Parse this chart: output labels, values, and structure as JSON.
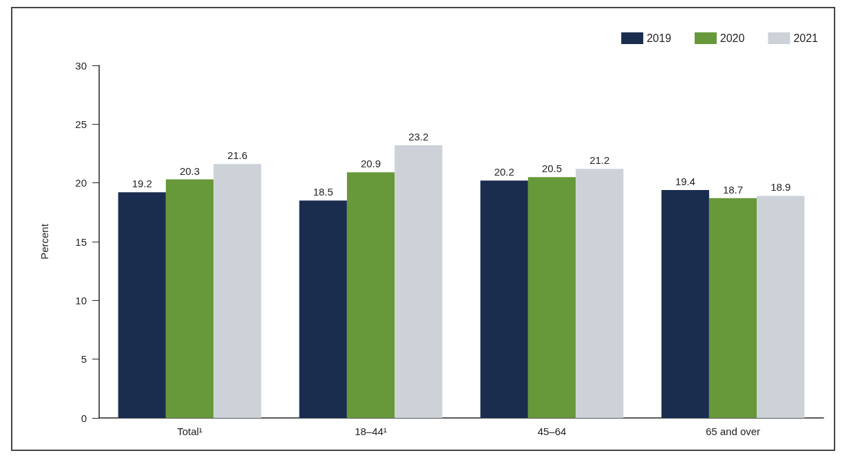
{
  "chart_data": {
    "type": "bar",
    "ylabel": "Percent",
    "categories": [
      "Total¹",
      "18–44¹",
      "45–64",
      "65 and over"
    ],
    "series": [
      {
        "name": "2019",
        "color": "#1b2d4e",
        "values": [
          19.2,
          18.5,
          20.2,
          19.4
        ]
      },
      {
        "name": "2020",
        "color": "#67983a",
        "values": [
          20.3,
          20.9,
          20.5,
          18.7
        ]
      },
      {
        "name": "2021",
        "color": "#ccd2d8",
        "values": [
          21.6,
          23.2,
          21.2,
          18.9
        ]
      }
    ],
    "ylim": [
      0,
      30
    ],
    "yticks": [
      0,
      5,
      10,
      15,
      20,
      25,
      30
    ],
    "grid": false,
    "legend": "top right",
    "data_labels": true
  }
}
